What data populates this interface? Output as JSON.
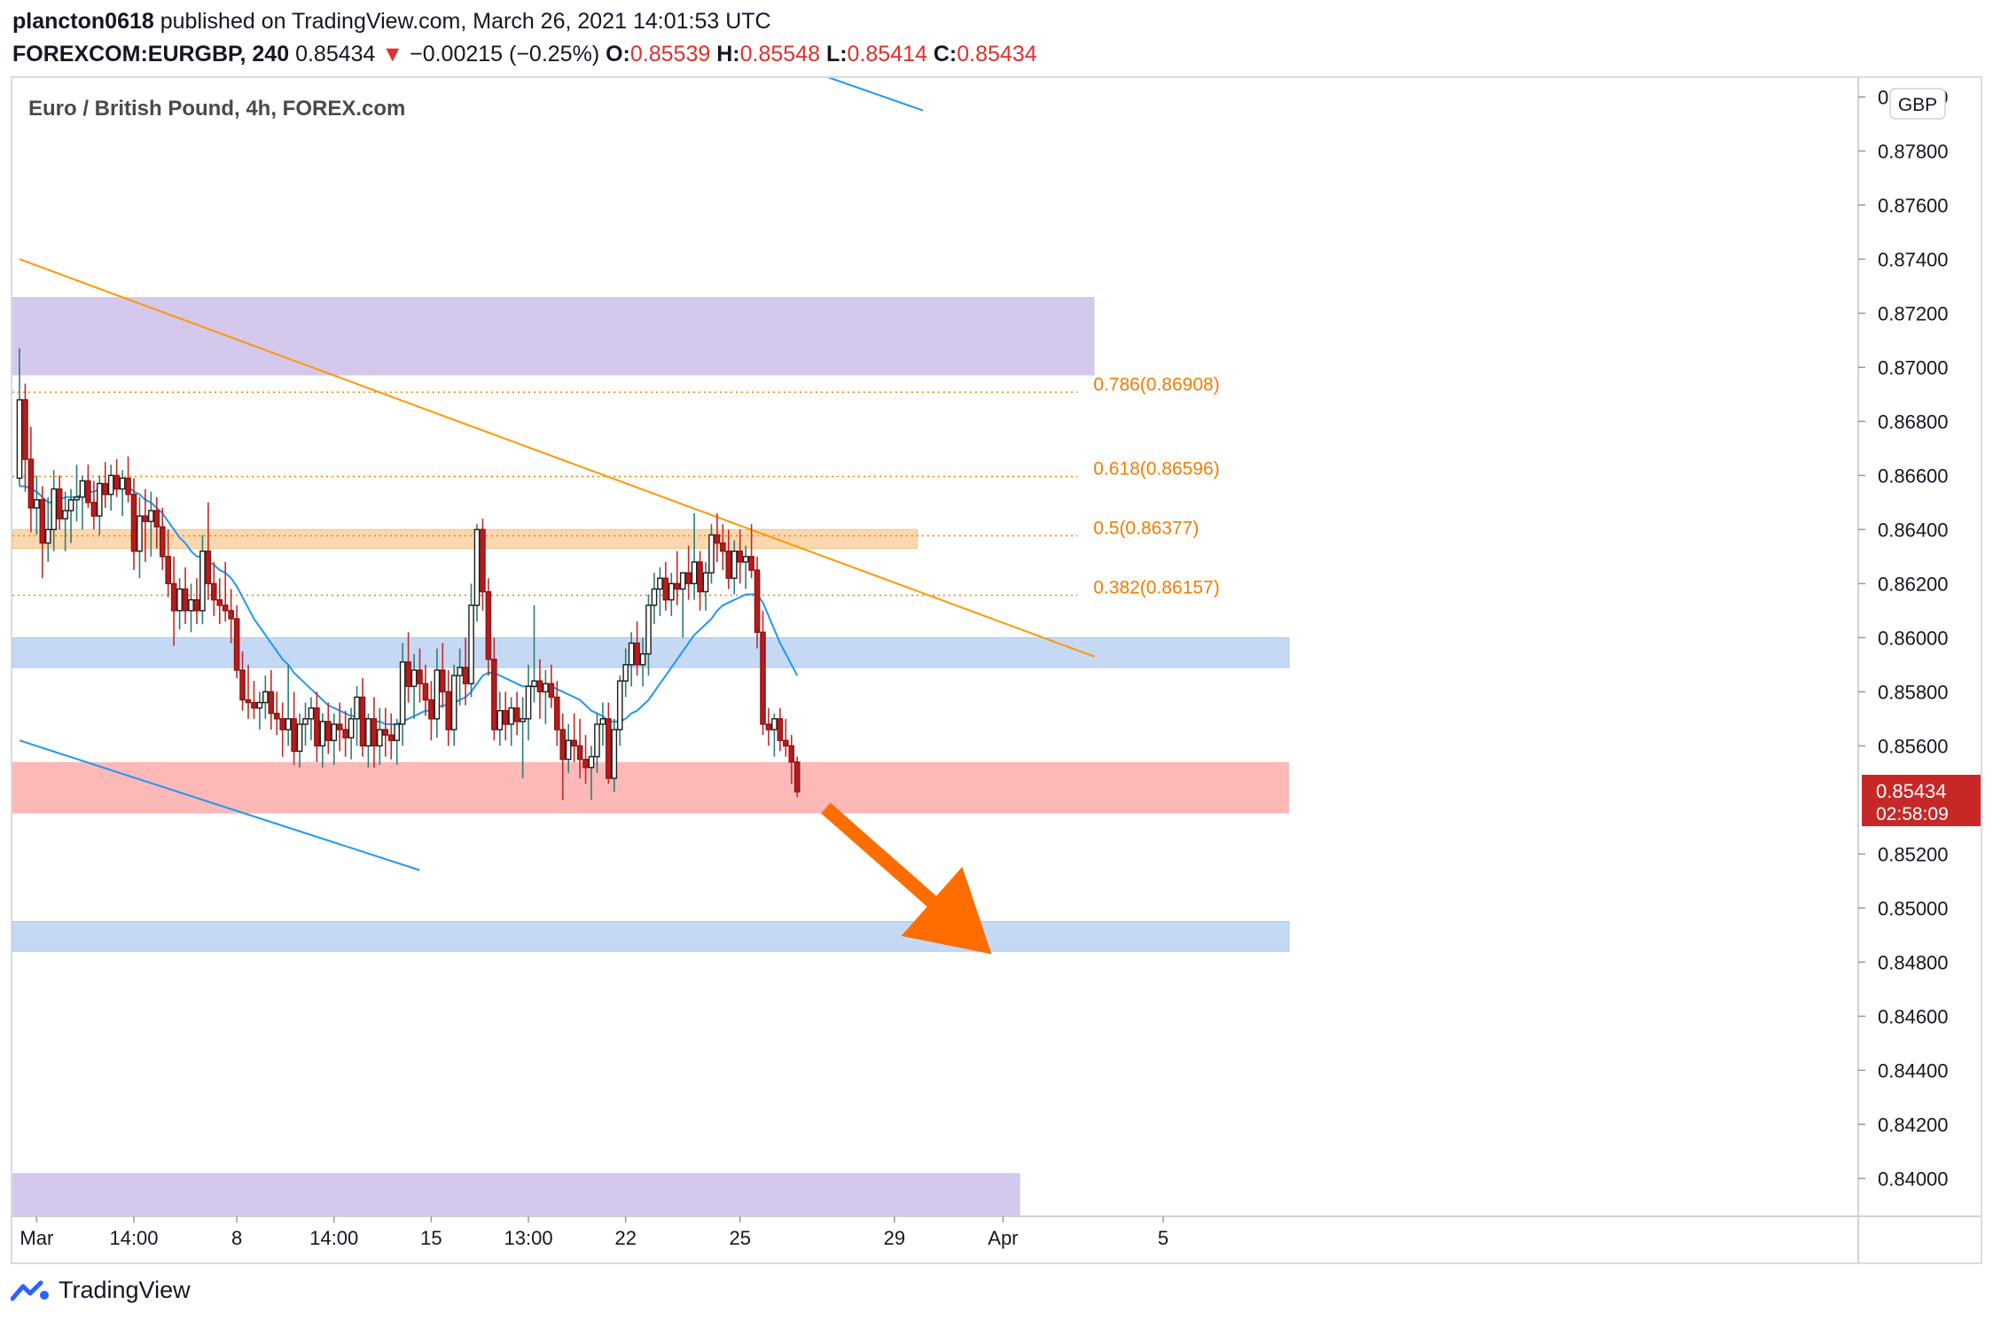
{
  "header": {
    "author": "plancton0618",
    "published": "published on TradingView.com, March 26, 2021 14:01:53 UTC",
    "symbol": "FOREXCOM:EURGBP, 240",
    "last": "0.85434",
    "arrow": "▼",
    "change": "−0.00215 (−0.25%)",
    "o_label": "O:",
    "o_value": "0.85539",
    "h_label": "H:",
    "h_value": "0.85548",
    "l_label": "L:",
    "l_value": "0.85414",
    "c_label": "C:",
    "c_value": "0.85434"
  },
  "footer": {
    "brand": "TradingView",
    "logo_icon": "tradingview-logo-icon"
  },
  "colors": {
    "up": "#26a69a",
    "down": "#ef5350",
    "candle_body_up": "#1b1b1b",
    "candle_body_down": "#b71c1c",
    "ma": "#2196f3",
    "trendline": "#ff9800",
    "channel": "#2196f3",
    "zone_purple": "#d4c8ec",
    "zone_blue": "#c5d9f5",
    "zone_red": "#fdb8b8",
    "zone_orange": "#fcd8b0",
    "arrow": "#ff6d00",
    "fib_text": "#f57c00",
    "price_tag": "#c62828"
  },
  "chart_data": {
    "type": "candlestick",
    "title": "Euro / British Pound, 4h, FOREX.com",
    "currency_label": "GBP",
    "ylim": [
      0.8386,
      0.8807
    ],
    "y_ticks": [
      "0.88000",
      "0.87800",
      "0.87600",
      "0.87400",
      "0.87200",
      "0.87000",
      "0.86800",
      "0.86600",
      "0.86400",
      "0.86200",
      "0.86000",
      "0.85800",
      "0.85600",
      "0.85200",
      "0.85000",
      "0.84800",
      "0.84600",
      "0.84400",
      "0.84200",
      "0.84000"
    ],
    "y_tick_values": [
      0.88,
      0.878,
      0.876,
      0.874,
      0.872,
      0.87,
      0.868,
      0.866,
      0.864,
      0.862,
      0.86,
      0.858,
      0.856,
      0.852,
      0.85,
      0.848,
      0.846,
      0.844,
      0.842,
      0.84
    ],
    "x_tick_labels": [
      "Mar",
      "14:00",
      "8",
      "14:00",
      "15",
      "13:00",
      "22",
      "25",
      "29",
      "Apr",
      "5"
    ],
    "x_tick_index": [
      3,
      20,
      38,
      55,
      72,
      89,
      106,
      126,
      153,
      172,
      200
    ],
    "last_price": {
      "value": "0.85434",
      "countdown": "02:58:09",
      "price": 0.85434
    },
    "fib_levels": [
      {
        "label": "0.786(0.86908)",
        "value": 0.86908
      },
      {
        "label": "0.618(0.86596)",
        "value": 0.86596
      },
      {
        "label": "0.5(0.86377)",
        "value": 0.86377
      },
      {
        "label": "0.382(0.86157)",
        "value": 0.86157
      }
    ],
    "zones": [
      {
        "name": "purple-resistance",
        "from": 0.8697,
        "to": 0.8726,
        "i0": 0,
        "i1": 188
      },
      {
        "name": "orange-fib-zone",
        "from": 0.8633,
        "to": 0.864,
        "i0": 0,
        "i1": 157
      },
      {
        "name": "blue-resistance",
        "from": 0.8589,
        "to": 0.86,
        "i0": 0,
        "i1": 222
      },
      {
        "name": "red-support",
        "from": 0.8535,
        "to": 0.8554,
        "i0": 0,
        "i1": 222
      },
      {
        "name": "blue-support",
        "from": 0.8484,
        "to": 0.8495,
        "i0": 0,
        "i1": 222
      },
      {
        "name": "purple-support",
        "from": 0.8386,
        "to": 0.8402,
        "i0": 0,
        "i1": 175
      }
    ],
    "trendlines": [
      {
        "name": "orange-downtrend",
        "i0": 0,
        "p0": 0.874,
        "i1": 188,
        "p1": 0.8593
      },
      {
        "name": "upper-channel",
        "i0": 135,
        "p0": 0.8812,
        "i1": 158,
        "p1": 0.8795
      },
      {
        "name": "lower-channel",
        "i0": 0,
        "p0": 0.8562,
        "i1": 70,
        "p1": 0.8514
      }
    ],
    "projection_arrow": {
      "i0": 141,
      "p0": 0.8537,
      "i1": 170,
      "p1": 0.8483
    },
    "candles": [
      [
        0.8659,
        0.8707,
        0.8656,
        0.8688
      ],
      [
        0.8688,
        0.8694,
        0.8654,
        0.8666
      ],
      [
        0.8666,
        0.8678,
        0.8639,
        0.8648
      ],
      [
        0.8648,
        0.866,
        0.8638,
        0.8651
      ],
      [
        0.8651,
        0.8656,
        0.8622,
        0.8635
      ],
      [
        0.8635,
        0.8652,
        0.8628,
        0.864
      ],
      [
        0.864,
        0.8662,
        0.8632,
        0.8655
      ],
      [
        0.8655,
        0.866,
        0.864,
        0.8644
      ],
      [
        0.8644,
        0.8654,
        0.8632,
        0.8647
      ],
      [
        0.8647,
        0.8655,
        0.8635,
        0.8651
      ],
      [
        0.8651,
        0.8664,
        0.8643,
        0.8652
      ],
      [
        0.8652,
        0.866,
        0.864,
        0.8658
      ],
      [
        0.8658,
        0.8664,
        0.8648,
        0.865
      ],
      [
        0.865,
        0.8658,
        0.864,
        0.8645
      ],
      [
        0.8645,
        0.866,
        0.8638,
        0.8657
      ],
      [
        0.8657,
        0.8665,
        0.8648,
        0.8653
      ],
      [
        0.8653,
        0.8664,
        0.8647,
        0.866
      ],
      [
        0.866,
        0.8666,
        0.8652,
        0.8655
      ],
      [
        0.8655,
        0.8662,
        0.8645,
        0.8659
      ],
      [
        0.8659,
        0.8667,
        0.865,
        0.8653
      ],
      [
        0.8653,
        0.8659,
        0.8625,
        0.8632
      ],
      [
        0.8632,
        0.8652,
        0.8622,
        0.8645
      ],
      [
        0.8645,
        0.8655,
        0.8628,
        0.8643
      ],
      [
        0.8643,
        0.8654,
        0.863,
        0.8647
      ],
      [
        0.8647,
        0.8652,
        0.8633,
        0.8641
      ],
      [
        0.8641,
        0.8648,
        0.8625,
        0.863
      ],
      [
        0.863,
        0.864,
        0.8615,
        0.862
      ],
      [
        0.862,
        0.863,
        0.8597,
        0.861
      ],
      [
        0.861,
        0.8622,
        0.8603,
        0.8618
      ],
      [
        0.8618,
        0.8626,
        0.8605,
        0.861
      ],
      [
        0.861,
        0.862,
        0.8602,
        0.8614
      ],
      [
        0.8614,
        0.8622,
        0.8605,
        0.861
      ],
      [
        0.861,
        0.8638,
        0.8605,
        0.8632
      ],
      [
        0.8632,
        0.865,
        0.8614,
        0.862
      ],
      [
        0.862,
        0.8628,
        0.8608,
        0.8614
      ],
      [
        0.8614,
        0.8622,
        0.8605,
        0.8612
      ],
      [
        0.8612,
        0.8628,
        0.8606,
        0.861
      ],
      [
        0.861,
        0.8618,
        0.8598,
        0.8607
      ],
      [
        0.8607,
        0.8612,
        0.8585,
        0.8588
      ],
      [
        0.8588,
        0.8595,
        0.8573,
        0.8577
      ],
      [
        0.8577,
        0.859,
        0.857,
        0.8576
      ],
      [
        0.8576,
        0.8584,
        0.857,
        0.8574
      ],
      [
        0.8574,
        0.858,
        0.8566,
        0.8576
      ],
      [
        0.8576,
        0.8586,
        0.857,
        0.858
      ],
      [
        0.858,
        0.8588,
        0.8566,
        0.8572
      ],
      [
        0.8572,
        0.858,
        0.8564,
        0.857
      ],
      [
        0.857,
        0.8576,
        0.8556,
        0.8566
      ],
      [
        0.8566,
        0.859,
        0.856,
        0.857
      ],
      [
        0.857,
        0.858,
        0.8553,
        0.8558
      ],
      [
        0.8558,
        0.8572,
        0.8552,
        0.8568
      ],
      [
        0.8568,
        0.8576,
        0.856,
        0.857
      ],
      [
        0.857,
        0.8578,
        0.8562,
        0.8574
      ],
      [
        0.8574,
        0.858,
        0.8554,
        0.856
      ],
      [
        0.856,
        0.8572,
        0.8552,
        0.8569
      ],
      [
        0.8569,
        0.8576,
        0.8557,
        0.8562
      ],
      [
        0.8562,
        0.8572,
        0.8553,
        0.8568
      ],
      [
        0.8568,
        0.8576,
        0.8558,
        0.8566
      ],
      [
        0.8566,
        0.8573,
        0.8556,
        0.8563
      ],
      [
        0.8563,
        0.8574,
        0.8555,
        0.857
      ],
      [
        0.857,
        0.8582,
        0.856,
        0.8578
      ],
      [
        0.8578,
        0.8585,
        0.8556,
        0.856
      ],
      [
        0.856,
        0.8572,
        0.8552,
        0.857
      ],
      [
        0.857,
        0.8578,
        0.8552,
        0.856
      ],
      [
        0.856,
        0.8574,
        0.8553,
        0.8566
      ],
      [
        0.8566,
        0.8574,
        0.8556,
        0.8564
      ],
      [
        0.8564,
        0.8572,
        0.8555,
        0.8562
      ],
      [
        0.8562,
        0.857,
        0.8553,
        0.8568
      ],
      [
        0.8568,
        0.8598,
        0.856,
        0.8591
      ],
      [
        0.8591,
        0.8602,
        0.8576,
        0.8582
      ],
      [
        0.8582,
        0.8594,
        0.857,
        0.8588
      ],
      [
        0.8588,
        0.8596,
        0.8576,
        0.8583
      ],
      [
        0.8583,
        0.859,
        0.8571,
        0.8577
      ],
      [
        0.8577,
        0.8584,
        0.8562,
        0.857
      ],
      [
        0.857,
        0.8596,
        0.8563,
        0.8588
      ],
      [
        0.8588,
        0.8598,
        0.8574,
        0.858
      ],
      [
        0.858,
        0.8588,
        0.856,
        0.8566
      ],
      [
        0.8566,
        0.859,
        0.856,
        0.8586
      ],
      [
        0.8586,
        0.8596,
        0.8575,
        0.8589
      ],
      [
        0.8589,
        0.86,
        0.8575,
        0.8583
      ],
      [
        0.8583,
        0.862,
        0.8578,
        0.8612
      ],
      [
        0.8612,
        0.8642,
        0.8606,
        0.864
      ],
      [
        0.864,
        0.8644,
        0.861,
        0.8617
      ],
      [
        0.8617,
        0.8622,
        0.8586,
        0.8592
      ],
      [
        0.8592,
        0.86,
        0.8562,
        0.8566
      ],
      [
        0.8566,
        0.858,
        0.856,
        0.8573
      ],
      [
        0.8573,
        0.858,
        0.8562,
        0.8568
      ],
      [
        0.8568,
        0.8578,
        0.856,
        0.8574
      ],
      [
        0.8574,
        0.858,
        0.8564,
        0.8569
      ],
      [
        0.8569,
        0.8578,
        0.8548,
        0.857
      ],
      [
        0.857,
        0.859,
        0.8562,
        0.8582
      ],
      [
        0.8582,
        0.8612,
        0.8576,
        0.8584
      ],
      [
        0.8584,
        0.8592,
        0.857,
        0.858
      ],
      [
        0.858,
        0.8588,
        0.8568,
        0.8583
      ],
      [
        0.8583,
        0.859,
        0.8574,
        0.8578
      ],
      [
        0.8578,
        0.8584,
        0.856,
        0.8566
      ],
      [
        0.8566,
        0.8572,
        0.854,
        0.8555
      ],
      [
        0.8555,
        0.8568,
        0.855,
        0.8562
      ],
      [
        0.8562,
        0.8572,
        0.8554,
        0.856
      ],
      [
        0.856,
        0.857,
        0.8548,
        0.8555
      ],
      [
        0.8555,
        0.8564,
        0.8546,
        0.8552
      ],
      [
        0.8552,
        0.856,
        0.854,
        0.8556
      ],
      [
        0.8556,
        0.8572,
        0.855,
        0.8568
      ],
      [
        0.8568,
        0.8576,
        0.856,
        0.857
      ],
      [
        0.857,
        0.8576,
        0.8546,
        0.8548
      ],
      [
        0.8548,
        0.857,
        0.8543,
        0.8566
      ],
      [
        0.8566,
        0.8586,
        0.856,
        0.8584
      ],
      [
        0.8584,
        0.8596,
        0.8578,
        0.859
      ],
      [
        0.859,
        0.8602,
        0.8582,
        0.8598
      ],
      [
        0.8598,
        0.8606,
        0.8586,
        0.859
      ],
      [
        0.859,
        0.86,
        0.8582,
        0.8594
      ],
      [
        0.8594,
        0.8616,
        0.8586,
        0.8612
      ],
      [
        0.8612,
        0.8624,
        0.8605,
        0.8618
      ],
      [
        0.8618,
        0.8626,
        0.8608,
        0.8622
      ],
      [
        0.8622,
        0.8628,
        0.861,
        0.8614
      ],
      [
        0.8614,
        0.8624,
        0.8608,
        0.862
      ],
      [
        0.862,
        0.8632,
        0.8612,
        0.8618
      ],
      [
        0.8618,
        0.8624,
        0.86,
        0.8624
      ],
      [
        0.8624,
        0.8634,
        0.8614,
        0.862
      ],
      [
        0.862,
        0.8646,
        0.8614,
        0.8628
      ],
      [
        0.8628,
        0.8632,
        0.861,
        0.8617
      ],
      [
        0.8617,
        0.8628,
        0.861,
        0.8624
      ],
      [
        0.8624,
        0.8642,
        0.862,
        0.8638
      ],
      [
        0.8638,
        0.8646,
        0.8628,
        0.8635
      ],
      [
        0.8635,
        0.8642,
        0.8625,
        0.8632
      ],
      [
        0.8632,
        0.864,
        0.8618,
        0.8622
      ],
      [
        0.8622,
        0.8636,
        0.8616,
        0.8632
      ],
      [
        0.8632,
        0.864,
        0.862,
        0.8628
      ],
      [
        0.8628,
        0.8634,
        0.8618,
        0.863
      ],
      [
        0.863,
        0.8642,
        0.8622,
        0.8625
      ],
      [
        0.8625,
        0.863,
        0.8596,
        0.8602
      ],
      [
        0.8602,
        0.861,
        0.8564,
        0.8568
      ],
      [
        0.8568,
        0.8574,
        0.856,
        0.8566
      ],
      [
        0.8566,
        0.8572,
        0.8556,
        0.857
      ],
      [
        0.857,
        0.8574,
        0.8558,
        0.8562
      ],
      [
        0.8562,
        0.857,
        0.8556,
        0.856
      ],
      [
        0.856,
        0.8564,
        0.8546,
        0.8554
      ],
      [
        0.8554,
        0.8556,
        0.8541,
        0.8543
      ]
    ],
    "ma_series": [
      0.8656,
      0.8656,
      0.8655,
      0.8654,
      0.8652,
      0.865,
      0.865,
      0.8651,
      0.8652,
      0.8652,
      0.8652,
      0.8653,
      0.8654,
      0.8654,
      0.8655,
      0.8655,
      0.8655,
      0.8656,
      0.8656,
      0.8656,
      0.8654,
      0.8653,
      0.8651,
      0.865,
      0.8648,
      0.8646,
      0.8643,
      0.864,
      0.8637,
      0.8635,
      0.8632,
      0.863,
      0.863,
      0.8628,
      0.8627,
      0.8625,
      0.8624,
      0.8622,
      0.8619,
      0.8615,
      0.8611,
      0.8607,
      0.8604,
      0.8601,
      0.8598,
      0.8595,
      0.8592,
      0.859,
      0.8587,
      0.8585,
      0.8583,
      0.8581,
      0.8579,
      0.8577,
      0.8575,
      0.8574,
      0.8573,
      0.8572,
      0.8571,
      0.8571,
      0.857,
      0.857,
      0.8569,
      0.8569,
      0.8568,
      0.8568,
      0.8568,
      0.8569,
      0.857,
      0.8571,
      0.8572,
      0.8573,
      0.8573,
      0.8574,
      0.8575,
      0.8575,
      0.8576,
      0.8577,
      0.8578,
      0.858,
      0.8583,
      0.8586,
      0.8587,
      0.8587,
      0.8586,
      0.8585,
      0.8584,
      0.8583,
      0.8582,
      0.8582,
      0.8582,
      0.8582,
      0.8582,
      0.8582,
      0.8581,
      0.858,
      0.8579,
      0.8578,
      0.8577,
      0.8575,
      0.8573,
      0.8572,
      0.8571,
      0.8569,
      0.8569,
      0.8569,
      0.857,
      0.8572,
      0.8573,
      0.8575,
      0.8577,
      0.858,
      0.8583,
      0.8586,
      0.8589,
      0.8592,
      0.8595,
      0.8598,
      0.8601,
      0.8603,
      0.8605,
      0.8607,
      0.861,
      0.8612,
      0.8613,
      0.8614,
      0.8615,
      0.8616,
      0.8616,
      0.8616,
      0.8613,
      0.8608,
      0.8603,
      0.8598,
      0.8594,
      0.859,
      0.8586
    ]
  }
}
